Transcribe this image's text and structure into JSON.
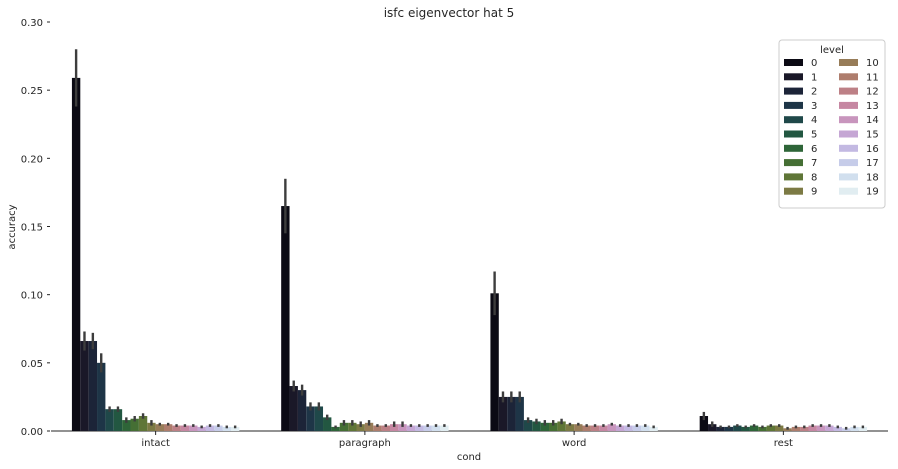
{
  "chart_data": {
    "type": "bar",
    "title": "isfc eigenvector hat 5",
    "xlabel": "cond",
    "ylabel": "accuracy",
    "ylim": [
      0,
      0.3
    ],
    "yticks": [
      "0.00",
      "0.05",
      "0.10",
      "0.15",
      "0.20",
      "0.25",
      "0.30"
    ],
    "grid": false,
    "legend": {
      "title": "level",
      "placement": "top-right",
      "columns": 2
    },
    "categories": [
      "intact",
      "paragraph",
      "word",
      "rest"
    ],
    "series": [
      {
        "name": "0",
        "color": "#0b0a14",
        "values": [
          0.259,
          0.165,
          0.101,
          0.011
        ],
        "err": [
          0.021,
          0.02,
          0.016,
          0.003
        ]
      },
      {
        "name": "1",
        "color": "#1a1828",
        "values": [
          0.066,
          0.033,
          0.025,
          0.005
        ],
        "err": [
          0.007,
          0.004,
          0.004,
          0.002
        ]
      },
      {
        "name": "2",
        "color": "#1c2438",
        "values": [
          0.066,
          0.03,
          0.025,
          0.003
        ],
        "err": [
          0.006,
          0.004,
          0.004,
          0.001
        ]
      },
      {
        "name": "3",
        "color": "#1e3547",
        "values": [
          0.05,
          0.018,
          0.025,
          0.003
        ],
        "err": [
          0.007,
          0.003,
          0.004,
          0.001
        ]
      },
      {
        "name": "4",
        "color": "#1f4849",
        "values": [
          0.016,
          0.018,
          0.008,
          0.004
        ],
        "err": [
          0.002,
          0.003,
          0.002,
          0.001
        ]
      },
      {
        "name": "5",
        "color": "#225741",
        "values": [
          0.016,
          0.01,
          0.007,
          0.003
        ],
        "err": [
          0.002,
          0.002,
          0.002,
          0.001
        ]
      },
      {
        "name": "6",
        "color": "#2e6538",
        "values": [
          0.008,
          0.003,
          0.006,
          0.004
        ],
        "err": [
          0.002,
          0.001,
          0.002,
          0.001
        ]
      },
      {
        "name": "7",
        "color": "#456f34",
        "values": [
          0.009,
          0.006,
          0.006,
          0.003
        ],
        "err": [
          0.002,
          0.002,
          0.002,
          0.001
        ]
      },
      {
        "name": "8",
        "color": "#5f7637",
        "values": [
          0.011,
          0.006,
          0.007,
          0.004
        ],
        "err": [
          0.002,
          0.002,
          0.002,
          0.001
        ]
      },
      {
        "name": "9",
        "color": "#7c7a44",
        "values": [
          0.006,
          0.005,
          0.005,
          0.004
        ],
        "err": [
          0.002,
          0.002,
          0.001,
          0.001
        ]
      },
      {
        "name": "10",
        "color": "#977c58",
        "values": [
          0.005,
          0.006,
          0.005,
          0.002
        ],
        "err": [
          0.001,
          0.002,
          0.001,
          0.001
        ]
      },
      {
        "name": "11",
        "color": "#ae7d6d",
        "values": [
          0.005,
          0.004,
          0.004,
          0.003
        ],
        "err": [
          0.001,
          0.001,
          0.001,
          0.001
        ]
      },
      {
        "name": "12",
        "color": "#bd8086",
        "values": [
          0.004,
          0.004,
          0.004,
          0.003
        ],
        "err": [
          0.001,
          0.001,
          0.001,
          0.001
        ]
      },
      {
        "name": "13",
        "color": "#c687a2",
        "values": [
          0.004,
          0.005,
          0.004,
          0.004
        ],
        "err": [
          0.001,
          0.002,
          0.001,
          0.001
        ]
      },
      {
        "name": "14",
        "color": "#c895bd",
        "values": [
          0.004,
          0.005,
          0.005,
          0.004
        ],
        "err": [
          0.001,
          0.002,
          0.001,
          0.001
        ]
      },
      {
        "name": "15",
        "color": "#c5a6d4",
        "values": [
          0.003,
          0.004,
          0.004,
          0.004
        ],
        "err": [
          0.001,
          0.001,
          0.001,
          0.001
        ]
      },
      {
        "name": "16",
        "color": "#c3b9e2",
        "values": [
          0.004,
          0.004,
          0.004,
          0.003
        ],
        "err": [
          0.001,
          0.001,
          0.001,
          0.001
        ]
      },
      {
        "name": "17",
        "color": "#c6cce9",
        "values": [
          0.004,
          0.004,
          0.004,
          0.002
        ],
        "err": [
          0.001,
          0.001,
          0.001,
          0.001
        ]
      },
      {
        "name": "18",
        "color": "#d1dfee",
        "values": [
          0.003,
          0.004,
          0.004,
          0.003
        ],
        "err": [
          0.001,
          0.001,
          0.001,
          0.001
        ]
      },
      {
        "name": "19",
        "color": "#e1edf1",
        "values": [
          0.003,
          0.004,
          0.003,
          0.003
        ],
        "err": [
          0.001,
          0.001,
          0.001,
          0.001
        ]
      }
    ]
  }
}
